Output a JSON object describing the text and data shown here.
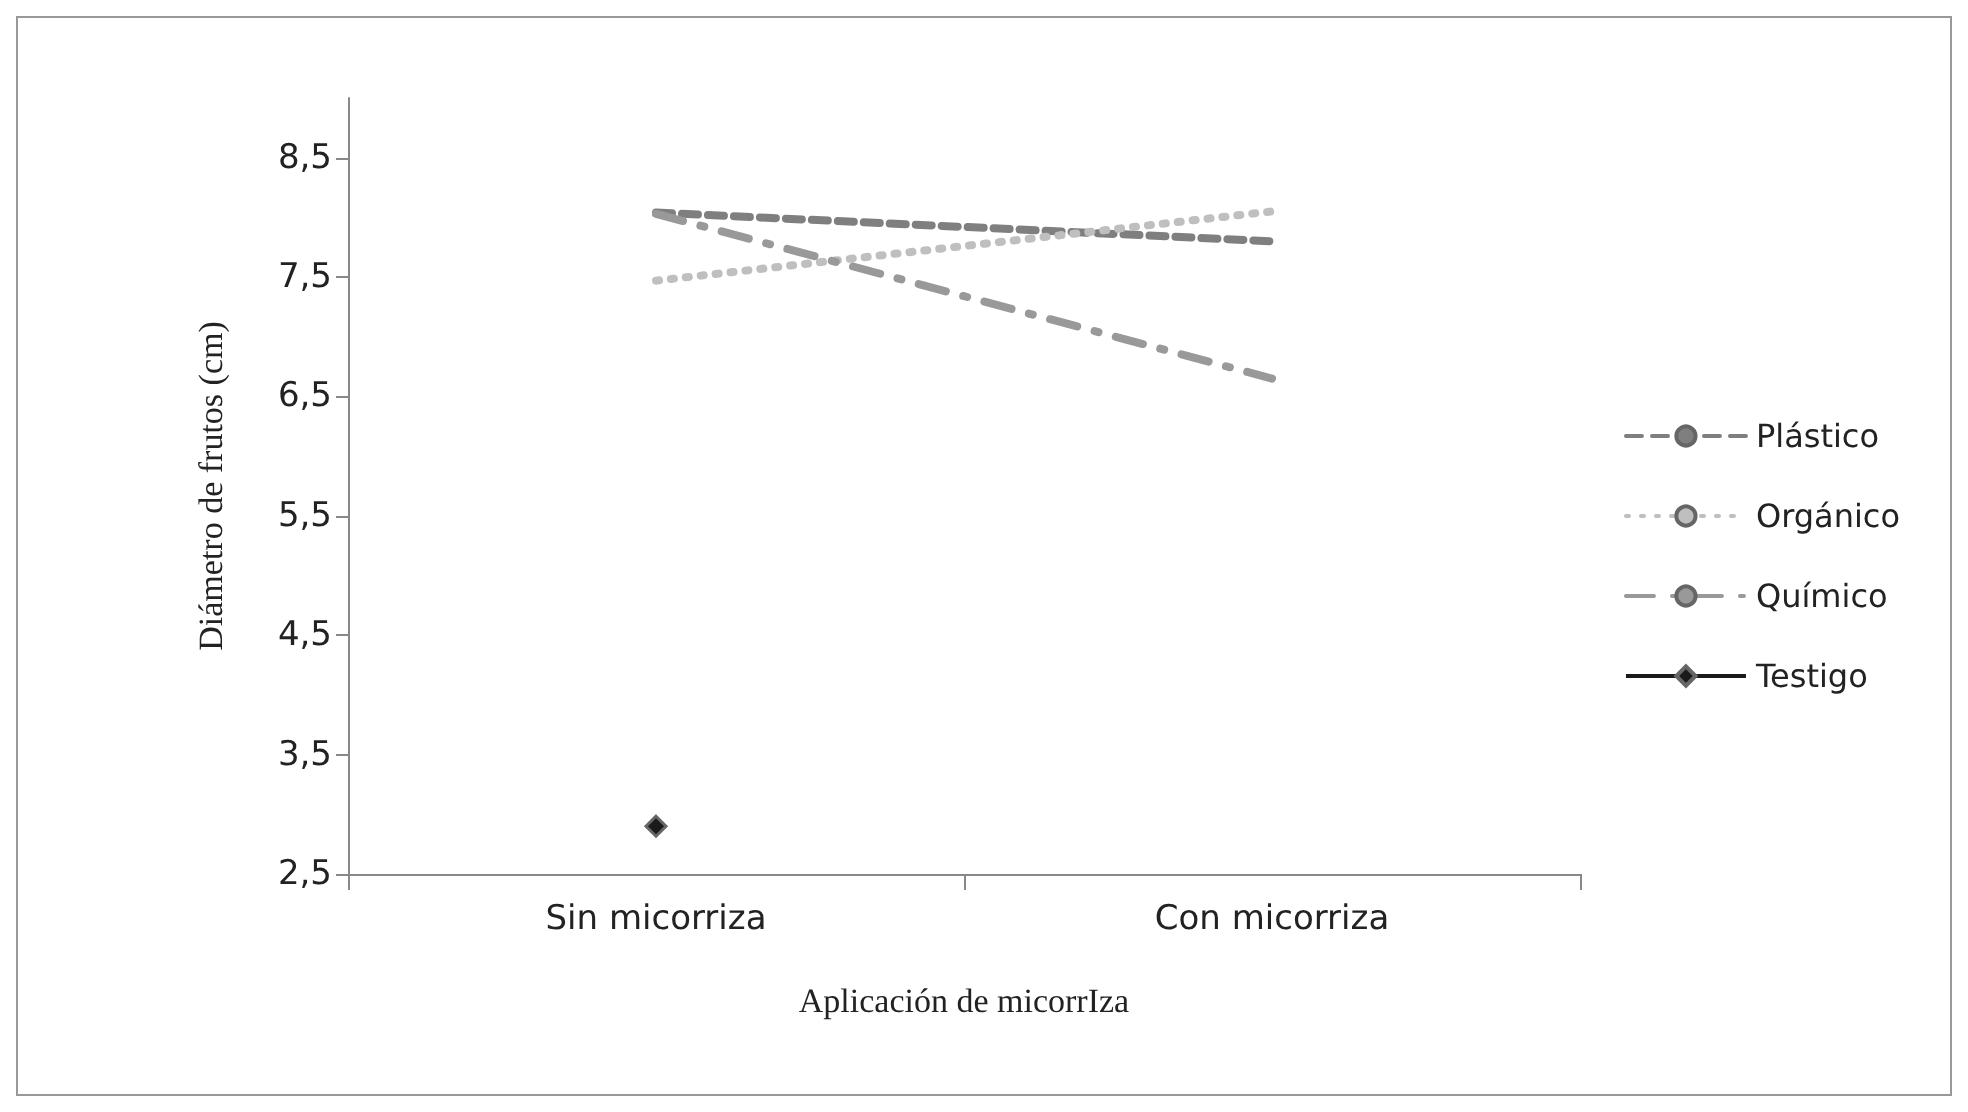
{
  "chart_data": {
    "type": "line",
    "xlabel": "Aplicación de micorrIza",
    "ylabel": "Diámetro de frutos (cm)",
    "categories": [
      "Sin micorriza",
      "Con micorriza"
    ],
    "series": [
      {
        "name": "Plástico",
        "color": "#7f7f7f",
        "line_style": "dashed",
        "marker": "none",
        "values": [
          8.04,
          7.8
        ]
      },
      {
        "name": "Orgánico",
        "color": "#bfbfbf",
        "line_style": "dotted",
        "marker": "none",
        "values": [
          7.47,
          8.05
        ]
      },
      {
        "name": "Químico",
        "color": "#999999",
        "line_style": "dashdot",
        "marker": "none",
        "values": [
          8.03,
          6.65
        ]
      },
      {
        "name": "Testigo",
        "color": "#1a1a1a",
        "line_style": "solid",
        "marker": "diamond",
        "values": [
          2.9,
          null
        ]
      }
    ],
    "ylim": [
      2.5,
      9
    ],
    "yticks": [
      {
        "value": 2.5,
        "label": "2,5"
      },
      {
        "value": 3.5,
        "label": "3,5"
      },
      {
        "value": 4.5,
        "label": "4,5"
      },
      {
        "value": 5.5,
        "label": "5,5"
      },
      {
        "value": 6.5,
        "label": "6,5"
      },
      {
        "value": 7.5,
        "label": "7,5"
      },
      {
        "value": 8.5,
        "label": "8,5"
      }
    ],
    "grid": false,
    "legend": "right"
  }
}
